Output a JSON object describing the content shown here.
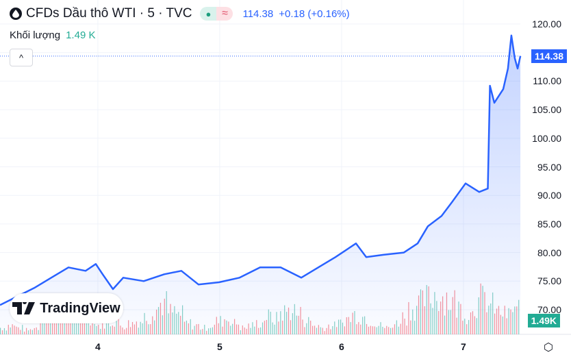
{
  "header": {
    "title": "CFDs Dầu thô WTI · 5 · TVC",
    "price": "114.38",
    "change": "+0.18 (+0.16%)",
    "market_open_icon": "●",
    "delayed_icon": "≈"
  },
  "volume": {
    "label": "Khối lượng",
    "value": "1.49 K"
  },
  "collapse_icon": "^",
  "logo": "TradingView",
  "price_label": "114.38",
  "volume_label": "1.49K",
  "settings_icon": "⬡",
  "colors": {
    "line": "#2962ff",
    "up": "#22ab94",
    "down": "#f23645"
  },
  "chart_data": {
    "type": "line",
    "title": "CFDs Dầu thô WTI · 5 · TVC",
    "xlabel": "",
    "ylabel": "",
    "x_ticks": [
      "4",
      "5",
      "6",
      "7"
    ],
    "x_tick_values": [
      4,
      5,
      6,
      7
    ],
    "y_ticks": [
      "120.00",
      "115.00",
      "110.00",
      "105.00",
      "100.00",
      "95.00",
      "90.00",
      "85.00",
      "80.00",
      "75.00",
      "70.00"
    ],
    "y_tick_values": [
      120,
      115,
      110,
      105,
      100,
      95,
      90,
      85,
      80,
      75,
      70
    ],
    "xlim": [
      3.197,
      7.47
    ],
    "ylim": [
      69,
      122.2
    ],
    "series": [
      {
        "name": "WTI",
        "x": [
          3.197,
          3.31,
          3.478,
          3.618,
          3.759,
          3.899,
          3.983,
          4.039,
          4.124,
          4.208,
          4.376,
          4.545,
          4.685,
          4.826,
          4.994,
          5.163,
          5.331,
          5.5,
          5.669,
          5.809,
          5.949,
          6.118,
          6.202,
          6.343,
          6.511,
          6.624,
          6.708,
          6.82,
          6.905,
          7.017,
          7.129,
          7.2,
          7.217,
          7.253,
          7.326,
          7.365,
          7.393,
          7.421,
          7.444,
          7.467
        ],
        "y": [
          70.8,
          72.0,
          73.8,
          75.6,
          77.4,
          76.8,
          78.0,
          76.2,
          73.6,
          75.6,
          75.0,
          76.2,
          76.8,
          74.4,
          74.8,
          75.6,
          77.4,
          77.4,
          75.6,
          77.4,
          79.2,
          81.6,
          79.2,
          79.6,
          80.0,
          81.6,
          84.6,
          86.4,
          88.8,
          92.1,
          90.6,
          91.2,
          109.2,
          106.2,
          108.6,
          112.2,
          118.0,
          114.0,
          112.2,
          114.4
        ]
      }
    ],
    "volume": [
      3,
      4,
      3,
      2,
      3,
      12,
      11,
      10,
      13,
      12,
      9,
      8,
      4,
      5,
      6,
      4,
      5,
      6,
      8,
      12,
      14,
      10,
      9,
      5,
      4,
      3,
      4,
      6,
      7,
      5,
      3,
      4,
      5,
      8,
      7,
      10,
      11,
      9,
      6,
      4,
      3,
      4,
      5,
      7,
      9,
      8,
      6,
      4,
      3,
      5,
      8,
      12,
      14,
      16,
      18,
      17,
      15,
      12,
      9,
      14,
      16,
      13,
      10,
      9,
      12
    ]
  }
}
